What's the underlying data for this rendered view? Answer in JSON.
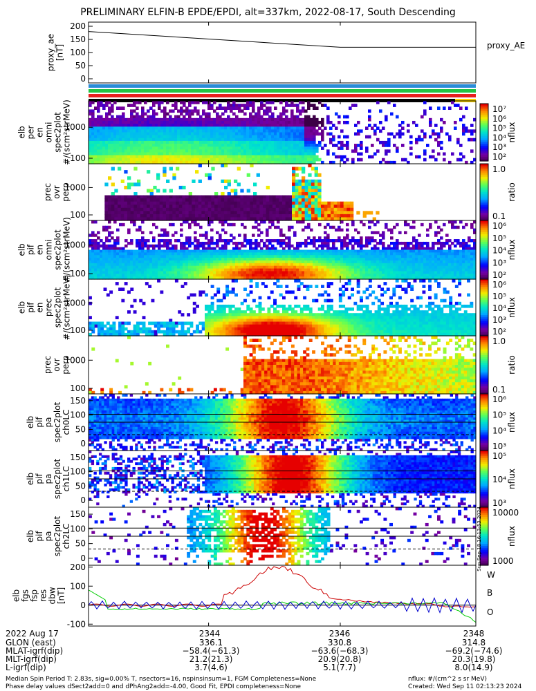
{
  "title": "PRELIMINARY ELFIN-B EPDE/EPDI, alt=337km, 2022-08-17, South Descending",
  "chart_data": [
    {
      "type": "line",
      "ylabel": "proxy_ae [nT]",
      "ylim": [
        0,
        200
      ],
      "yticks": [
        "200",
        "150",
        "100",
        "50",
        "0"
      ],
      "series": [
        {
          "name": "proxy_AE",
          "x": [
            0,
            0.65,
            1
          ],
          "y": [
            180,
            120,
            120
          ]
        }
      ]
    },
    {
      "type": "table",
      "bars": [
        "#2a8cd8",
        "#22c444",
        "#e81e1e",
        "#000000"
      ],
      "yellow_tail": "#ffd700"
    },
    {
      "type": "heatmap",
      "ylabel": "elb\nper\nen\nomni\nspec2plot\n#/(scm²strMeV)",
      "yticks": [
        "1000",
        "100"
      ],
      "colorbar": {
        "label": "nflux",
        "ticks": [
          "10⁷",
          "10⁶",
          "10⁵",
          "10⁴",
          "10³",
          "10²"
        ]
      }
    },
    {
      "type": "heatmap",
      "ylabel": "prec\novr\nperp",
      "yticks": [
        "1000",
        "100"
      ],
      "colorbar": {
        "label": "ratio",
        "ticks": [
          "1.0",
          "0.1"
        ]
      }
    },
    {
      "type": "heatmap",
      "ylabel": "elb\npif\nen\nomni\nspec2plot\n#/(scm²strMeV)",
      "yticks": [
        "1000",
        "100"
      ],
      "colorbar": {
        "label": "nflux",
        "ticks": [
          "10⁶",
          "10⁵",
          "10⁴",
          "10³",
          "10²"
        ]
      }
    },
    {
      "type": "heatmap",
      "ylabel": "elb\npif\nen\nprec\nspec2plot\n#/(scm²strMeV)",
      "yticks": [
        "1000",
        "100"
      ],
      "colorbar": {
        "label": "nflux",
        "ticks": [
          "10⁶",
          "10⁵",
          "10⁴",
          "10³",
          "10²"
        ]
      }
    },
    {
      "type": "heatmap",
      "ylabel": "prec\novr\nperp",
      "yticks": [
        "1000",
        "100"
      ],
      "colorbar": {
        "label": "ratio",
        "ticks": [
          "1.0",
          "0.1"
        ]
      }
    },
    {
      "type": "heatmap",
      "ylabel": "elb\npif\npa\nspec2plot\nch0LC",
      "yticks": [
        "150",
        "100",
        "50",
        "0"
      ],
      "colorbar": {
        "label": "nflux",
        "ticks": [
          "10⁶",
          "10⁵",
          "10⁴",
          "10³"
        ]
      }
    },
    {
      "type": "heatmap",
      "ylabel": "elb\npif\npa\nspec2plot\nch1LC",
      "yticks": [
        "150",
        "100",
        "50",
        "0"
      ],
      "colorbar": {
        "label": "nflux",
        "ticks": [
          "10⁵",
          "10⁴",
          "10³"
        ]
      }
    },
    {
      "type": "heatmap",
      "ylabel": "elb\npif\npa\nspec2plot\nch2LC",
      "yticks": [
        "150",
        "100",
        "50",
        "0"
      ],
      "colorbar": {
        "label": "nflux",
        "ticks": [
          "10000",
          "1000"
        ]
      }
    },
    {
      "type": "line",
      "ylabel": "elb\nfgs\nfsp\nres\ndbw\n[nT]",
      "ylim": [
        -110,
        210
      ],
      "yticks": [
        "200",
        "100",
        "0",
        "-100"
      ],
      "series": [
        {
          "name": "W",
          "color": "#cc0000"
        },
        {
          "name": "B",
          "color": "#00cc00"
        },
        {
          "name": "O",
          "color": "#0000cc"
        }
      ]
    }
  ],
  "side_label": "proxy_AE",
  "timestamp_vertical": "Sun Sep 18 16:13:53 2024",
  "footer": {
    "date": "2022 Aug 17",
    "rows": [
      {
        "label": "GLON (east)",
        "v": [
          "336.1",
          "330.8",
          "314.8"
        ]
      },
      {
        "label": "MLAT-igrf(dip)",
        "v": [
          "−58.4(−61.3)",
          "−63.6(−68.3)",
          "−69.2(−74.6)"
        ]
      },
      {
        "label": "MLT-igrf(dip)",
        "v": [
          "21.2(21.3)",
          "20.9(20.8)",
          "20.3(19.8)"
        ]
      },
      {
        "label": "L-igrf(dip)",
        "v": [
          "3.7(4.6)",
          "5.1(7.7)",
          "8.0(14.9)"
        ]
      }
    ],
    "times": [
      "2344",
      "2346",
      "2348"
    ],
    "note1": "Median Spin Period T: 2.83s, sig=0.00% T, nsectors=16, nspinsinsum=1, FGM Completeness=None",
    "note2": "Phase delay values dSect2add=0 and dPhAng2add=-4.00, Good Fit, EPDI completeness=None",
    "nflux_note": "nflux: #/(cm^2 s sr MeV)",
    "created": "Created: Wed Sep 11 02:13:23 2024"
  }
}
